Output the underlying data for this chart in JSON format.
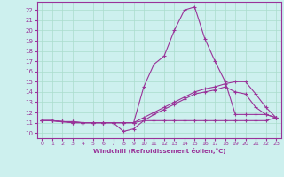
{
  "xlabel": "Windchill (Refroidissement éolien,°C)",
  "background_color": "#cdf0ee",
  "grid_color": "#aaddcc",
  "line_color": "#993399",
  "xlim": [
    -0.5,
    23.5
  ],
  "ylim": [
    9.5,
    22.8
  ],
  "xticks": [
    0,
    1,
    2,
    3,
    4,
    5,
    6,
    7,
    8,
    9,
    10,
    11,
    12,
    13,
    14,
    15,
    16,
    17,
    18,
    19,
    20,
    21,
    22,
    23
  ],
  "yticks": [
    10,
    11,
    12,
    13,
    14,
    15,
    16,
    17,
    18,
    19,
    20,
    21,
    22
  ],
  "lines": [
    {
      "x": [
        0,
        1,
        2,
        3,
        4,
        5,
        6,
        7,
        8,
        9,
        10,
        11,
        12,
        13,
        14,
        15,
        16,
        17,
        18,
        19,
        20,
        21,
        22,
        23
      ],
      "y": [
        11.2,
        11.2,
        11.1,
        11.1,
        11.0,
        11.0,
        11.0,
        11.0,
        10.15,
        10.4,
        11.2,
        11.2,
        11.2,
        11.2,
        11.2,
        11.2,
        11.2,
        11.2,
        11.2,
        11.2,
        11.2,
        11.2,
        11.2,
        11.5
      ]
    },
    {
      "x": [
        0,
        1,
        2,
        3,
        4,
        5,
        6,
        7,
        8,
        9,
        10,
        11,
        12,
        13,
        14,
        15,
        16,
        17,
        18,
        19,
        20,
        21,
        22,
        23
      ],
      "y": [
        11.2,
        11.2,
        11.1,
        11.1,
        11.0,
        11.0,
        11.0,
        11.0,
        11.0,
        11.0,
        14.5,
        16.7,
        17.5,
        20.0,
        22.0,
        22.3,
        19.2,
        17.0,
        15.0,
        11.8,
        11.8,
        11.8,
        11.8,
        11.5
      ]
    },
    {
      "x": [
        0,
        1,
        2,
        3,
        4,
        5,
        6,
        7,
        8,
        9,
        10,
        11,
        12,
        13,
        14,
        15,
        16,
        17,
        18,
        19,
        20,
        21,
        22,
        23
      ],
      "y": [
        11.2,
        11.2,
        11.1,
        11.0,
        11.0,
        11.0,
        11.0,
        11.0,
        11.0,
        11.0,
        11.5,
        12.0,
        12.5,
        13.0,
        13.5,
        14.0,
        14.3,
        14.5,
        14.8,
        15.0,
        15.0,
        13.8,
        12.5,
        11.5
      ]
    },
    {
      "x": [
        0,
        1,
        2,
        3,
        4,
        5,
        6,
        7,
        8,
        9,
        10,
        11,
        12,
        13,
        14,
        15,
        16,
        17,
        18,
        19,
        20,
        21,
        22,
        23
      ],
      "y": [
        11.2,
        11.2,
        11.1,
        11.0,
        11.0,
        11.0,
        11.0,
        11.0,
        11.0,
        11.0,
        11.2,
        11.8,
        12.3,
        12.8,
        13.3,
        13.8,
        14.0,
        14.2,
        14.5,
        14.0,
        13.8,
        12.5,
        11.8,
        11.5
      ]
    }
  ]
}
